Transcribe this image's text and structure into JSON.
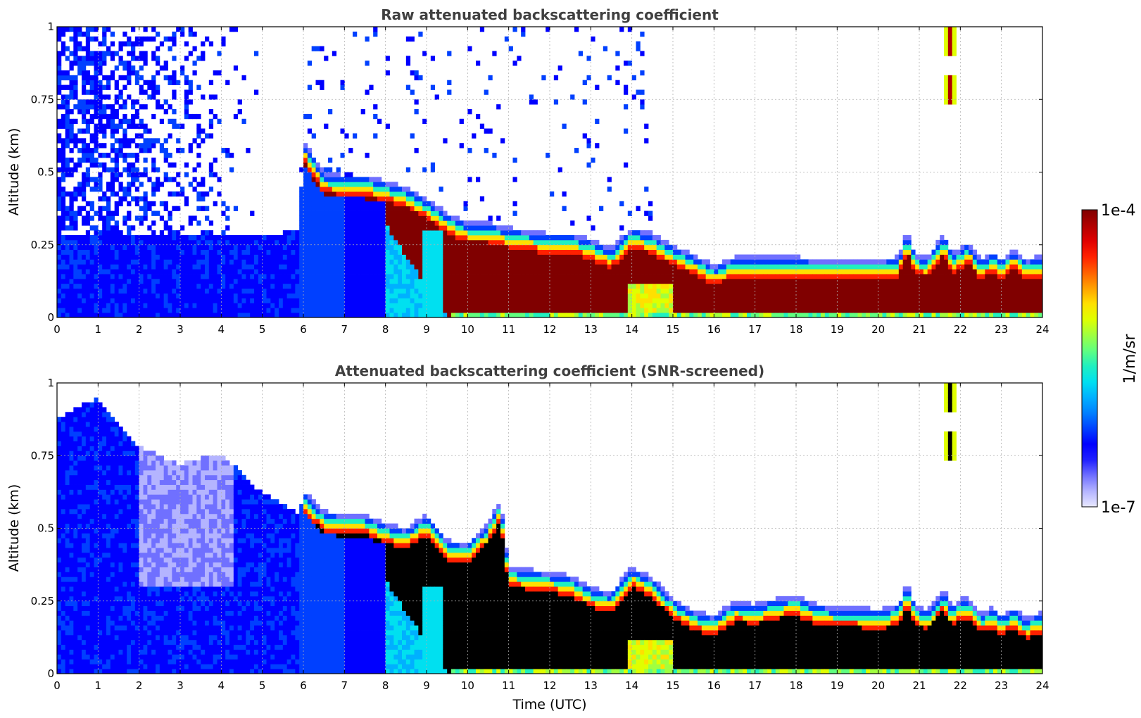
{
  "chart_data": [
    {
      "type": "heatmap",
      "title": "Raw attenuated backscattering coefficient",
      "xlabel": "",
      "ylabel": "Altitude (km)",
      "xlim": [
        0,
        24
      ],
      "ylim": [
        0,
        1
      ],
      "x_ticks": [
        "0",
        "1",
        "2",
        "3",
        "4",
        "5",
        "6",
        "7",
        "8",
        "9",
        "10",
        "11",
        "12",
        "13",
        "14",
        "15",
        "16",
        "17",
        "18",
        "19",
        "20",
        "21",
        "22",
        "23",
        "24"
      ],
      "y_ticks": [
        "0",
        "0.25",
        "0.5",
        "0.75",
        "1"
      ],
      "screened": false,
      "layer_top_km": [
        [
          0,
          0.28
        ],
        [
          1,
          0.28
        ],
        [
          2,
          0.28
        ],
        [
          3,
          0.28
        ],
        [
          4,
          0.28
        ],
        [
          5,
          0.28
        ],
        [
          5.9,
          0.3
        ],
        [
          6.0,
          0.61
        ],
        [
          6.5,
          0.5
        ],
        [
          7.0,
          0.49
        ],
        [
          7.5,
          0.49
        ],
        [
          8.0,
          0.47
        ],
        [
          8.5,
          0.45
        ],
        [
          9.0,
          0.41
        ],
        [
          9.5,
          0.36
        ],
        [
          10.0,
          0.33
        ],
        [
          10.5,
          0.33
        ],
        [
          11.0,
          0.31
        ],
        [
          11.5,
          0.3
        ],
        [
          12.0,
          0.29
        ],
        [
          12.5,
          0.29
        ],
        [
          13.0,
          0.27
        ],
        [
          13.5,
          0.24
        ],
        [
          14.0,
          0.31
        ],
        [
          14.5,
          0.29
        ],
        [
          15.0,
          0.25
        ],
        [
          15.5,
          0.22
        ],
        [
          16.0,
          0.18
        ],
        [
          16.5,
          0.21
        ],
        [
          17.0,
          0.21
        ],
        [
          17.5,
          0.21
        ],
        [
          18.0,
          0.21
        ],
        [
          18.5,
          0.2
        ],
        [
          19.0,
          0.2
        ],
        [
          19.5,
          0.2
        ],
        [
          20.0,
          0.2
        ],
        [
          20.5,
          0.21
        ],
        [
          20.7,
          0.3
        ],
        [
          20.9,
          0.22
        ],
        [
          21.2,
          0.21
        ],
        [
          21.6,
          0.29
        ],
        [
          21.8,
          0.22
        ],
        [
          22.0,
          0.24
        ],
        [
          22.2,
          0.26
        ],
        [
          22.5,
          0.2
        ],
        [
          22.8,
          0.23
        ],
        [
          23.0,
          0.2
        ],
        [
          23.3,
          0.24
        ],
        [
          23.6,
          0.2
        ],
        [
          23.9,
          0.21
        ]
      ],
      "feature_elevated_cloud_km": {
        "t_center": 21.75,
        "alt_bottom": 0.74,
        "alt_top": 1.0
      }
    },
    {
      "type": "heatmap",
      "title": "Attenuated backscattering coefficient (SNR-screened)",
      "xlabel": "Time (UTC)",
      "ylabel": "Altitude (km)",
      "xlim": [
        0,
        24
      ],
      "ylim": [
        0,
        1
      ],
      "x_ticks": [
        "0",
        "1",
        "2",
        "3",
        "4",
        "5",
        "6",
        "7",
        "8",
        "9",
        "10",
        "11",
        "12",
        "13",
        "14",
        "15",
        "16",
        "17",
        "18",
        "19",
        "20",
        "21",
        "22",
        "23",
        "24"
      ],
      "y_ticks": [
        "0",
        "0.25",
        "0.5",
        "0.75",
        "1"
      ],
      "screened": true,
      "layer_top_km": [
        [
          0,
          0.88
        ],
        [
          1,
          0.95
        ],
        [
          2,
          0.78
        ],
        [
          3,
          0.72
        ],
        [
          4,
          0.76
        ],
        [
          5,
          0.62
        ],
        [
          5.9,
          0.55
        ],
        [
          6.0,
          0.63
        ],
        [
          6.5,
          0.56
        ],
        [
          7.0,
          0.55
        ],
        [
          7.5,
          0.55
        ],
        [
          8.0,
          0.52
        ],
        [
          8.5,
          0.5
        ],
        [
          9.0,
          0.55
        ],
        [
          9.5,
          0.46
        ],
        [
          10.0,
          0.45
        ],
        [
          10.5,
          0.52
        ],
        [
          10.8,
          0.6
        ],
        [
          11.0,
          0.37
        ],
        [
          11.5,
          0.36
        ],
        [
          12.0,
          0.35
        ],
        [
          12.5,
          0.34
        ],
        [
          13.0,
          0.3
        ],
        [
          13.5,
          0.28
        ],
        [
          14.0,
          0.37
        ],
        [
          14.5,
          0.33
        ],
        [
          15.0,
          0.26
        ],
        [
          15.5,
          0.22
        ],
        [
          16.0,
          0.2
        ],
        [
          16.5,
          0.25
        ],
        [
          17.0,
          0.24
        ],
        [
          17.5,
          0.26
        ],
        [
          18.0,
          0.27
        ],
        [
          18.5,
          0.24
        ],
        [
          19.0,
          0.23
        ],
        [
          19.5,
          0.23
        ],
        [
          20.0,
          0.22
        ],
        [
          20.5,
          0.24
        ],
        [
          20.7,
          0.31
        ],
        [
          20.9,
          0.24
        ],
        [
          21.2,
          0.22
        ],
        [
          21.6,
          0.29
        ],
        [
          21.8,
          0.23
        ],
        [
          22.0,
          0.26
        ],
        [
          22.2,
          0.26
        ],
        [
          22.5,
          0.21
        ],
        [
          22.8,
          0.23
        ],
        [
          23.0,
          0.2
        ],
        [
          23.3,
          0.23
        ],
        [
          23.6,
          0.19
        ],
        [
          23.9,
          0.21
        ]
      ],
      "feature_elevated_cloud_km": {
        "t_center": 21.75,
        "alt_bottom": 0.74,
        "alt_top": 1.0
      }
    }
  ],
  "colorbar": {
    "max_label": "1e-4",
    "min_label": "1e-7",
    "unit_label": "1/m/sr",
    "colors": [
      "#e8e8ff",
      "#b4b4ff",
      "#7070ff",
      "#2020ff",
      "#0000ff",
      "#0040ff",
      "#0080ff",
      "#00b0ff",
      "#00e0f0",
      "#20f0c0",
      "#60ff80",
      "#a0ff40",
      "#e0ff00",
      "#ffe000",
      "#ffa000",
      "#ff6000",
      "#ff2000",
      "#e00000",
      "#b00000",
      "#800000"
    ]
  }
}
